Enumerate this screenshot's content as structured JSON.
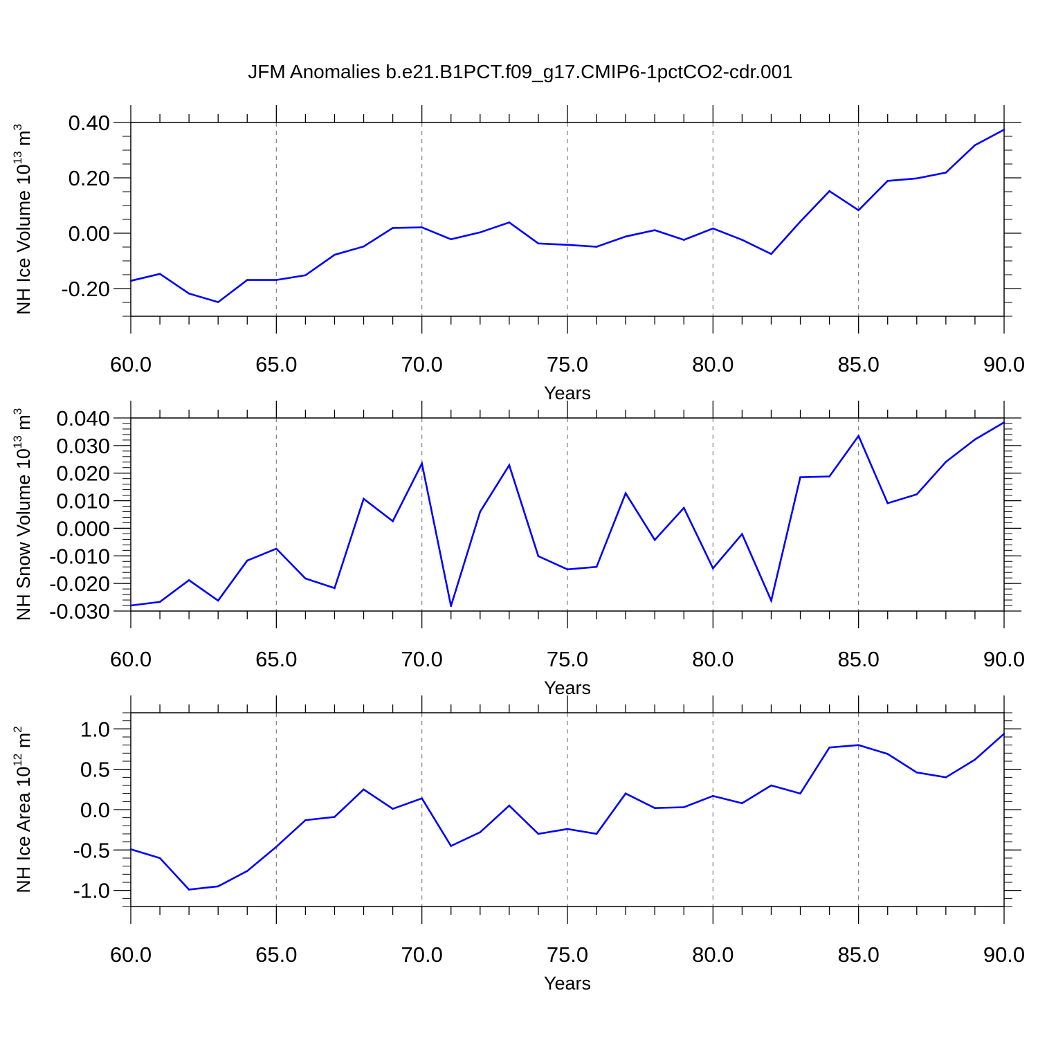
{
  "figure": {
    "title": "JFM Anomalies b.e21.B1PCT.f09_g17.CMIP6-1pctCO2-cdr.001"
  },
  "chart_data": [
    {
      "type": "line",
      "title": "",
      "xlabel": "Years",
      "ylabel": "NH Ice Volume 10",
      "ylabel_exp": "13",
      "ylabel_unit": " m",
      "ylabel_unit_exp": "3",
      "xlim": [
        60,
        90
      ],
      "ylim": [
        -0.3,
        0.4
      ],
      "xticks": [
        60,
        65,
        70,
        75,
        80,
        85,
        90
      ],
      "xtick_labels": [
        "60.0",
        "65.0",
        "70.0",
        "75.0",
        "80.0",
        "85.0",
        "90.0"
      ],
      "yticks": [
        -0.2,
        0.0,
        0.2,
        0.4
      ],
      "ytick_labels": [
        "-0.20",
        "0.00",
        "0.20",
        "0.40"
      ],
      "yminor_step": 0.05,
      "grid": "vertical dashed at major x ticks",
      "series": [
        {
          "color": "#0000ff",
          "x": [
            60,
            61,
            62,
            63,
            64,
            65,
            66,
            67,
            68,
            69,
            70,
            71,
            72,
            73,
            74,
            75,
            76,
            77,
            78,
            79,
            80,
            81,
            82,
            83,
            84,
            85,
            86,
            87,
            88,
            89,
            90
          ],
          "y": [
            -0.172,
            -0.147,
            -0.218,
            -0.249,
            -0.169,
            -0.169,
            -0.152,
            -0.078,
            -0.048,
            0.019,
            0.021,
            -0.022,
            0.003,
            0.039,
            -0.037,
            -0.042,
            -0.049,
            -0.012,
            0.011,
            -0.024,
            0.017,
            -0.024,
            -0.075,
            0.042,
            0.152,
            0.083,
            0.189,
            0.198,
            0.219,
            0.318,
            0.374
          ]
        }
      ]
    },
    {
      "type": "line",
      "title": "",
      "xlabel": "Years",
      "ylabel": "NH Snow Volume 10",
      "ylabel_exp": "13",
      "ylabel_unit": " m",
      "ylabel_unit_exp": "3",
      "xlim": [
        60,
        90
      ],
      "ylim": [
        -0.03,
        0.04
      ],
      "xticks": [
        60,
        65,
        70,
        75,
        80,
        85,
        90
      ],
      "xtick_labels": [
        "60.0",
        "65.0",
        "70.0",
        "75.0",
        "80.0",
        "85.0",
        "90.0"
      ],
      "yticks": [
        -0.03,
        -0.02,
        -0.01,
        0.0,
        0.01,
        0.02,
        0.03,
        0.04
      ],
      "ytick_labels": [
        "-0.030",
        "-0.020",
        "-0.010",
        "0.000",
        "0.010",
        "0.020",
        "0.030",
        "0.040"
      ],
      "yminor_step": 0.002,
      "grid": "vertical dashed at major x ticks",
      "series": [
        {
          "color": "#0000ff",
          "x": [
            60,
            61,
            62,
            63,
            64,
            65,
            66,
            67,
            68,
            69,
            70,
            71,
            72,
            73,
            74,
            75,
            76,
            77,
            78,
            79,
            80,
            81,
            82,
            83,
            84,
            85,
            86,
            87,
            88,
            89,
            90
          ],
          "y": [
            -0.028,
            -0.0267,
            -0.0188,
            -0.0262,
            -0.0117,
            -0.0074,
            -0.0182,
            -0.0217,
            0.0107,
            0.0026,
            0.0235,
            -0.0282,
            0.006,
            0.0229,
            -0.0101,
            -0.0149,
            -0.014,
            0.0127,
            -0.0042,
            0.0074,
            -0.0145,
            -0.0021,
            -0.0262,
            0.0185,
            0.0188,
            0.0335,
            0.0091,
            0.0123,
            0.0241,
            0.0322,
            0.0384
          ]
        }
      ]
    },
    {
      "type": "line",
      "title": "",
      "xlabel": "Years",
      "ylabel": "NH Ice Area 10",
      "ylabel_exp": "12",
      "ylabel_unit": " m",
      "ylabel_unit_exp": "2",
      "xlim": [
        60,
        90
      ],
      "ylim": [
        -1.2,
        1.2
      ],
      "xticks": [
        60,
        65,
        70,
        75,
        80,
        85,
        90
      ],
      "xtick_labels": [
        "60.0",
        "65.0",
        "70.0",
        "75.0",
        "80.0",
        "85.0",
        "90.0"
      ],
      "yticks": [
        -1.0,
        -0.5,
        0.0,
        0.5,
        1.0
      ],
      "ytick_labels": [
        "-1.0",
        "-0.5",
        "0.0",
        "0.5",
        "1.0"
      ],
      "yminor_step": 0.1,
      "grid": "vertical dashed at major x ticks",
      "series": [
        {
          "color": "#0000ff",
          "x": [
            60,
            61,
            62,
            63,
            64,
            65,
            66,
            67,
            68,
            69,
            70,
            71,
            72,
            73,
            74,
            75,
            76,
            77,
            78,
            79,
            80,
            81,
            82,
            83,
            84,
            85,
            86,
            87,
            88,
            89,
            90
          ],
          "y": [
            -0.49,
            -0.6,
            -0.99,
            -0.95,
            -0.76,
            -0.46,
            -0.13,
            -0.09,
            0.25,
            0.01,
            0.14,
            -0.45,
            -0.28,
            0.05,
            -0.3,
            -0.24,
            -0.3,
            0.2,
            0.02,
            0.03,
            0.17,
            0.08,
            0.3,
            0.2,
            0.77,
            0.8,
            0.69,
            0.46,
            0.4,
            0.62,
            0.94
          ]
        }
      ]
    }
  ]
}
